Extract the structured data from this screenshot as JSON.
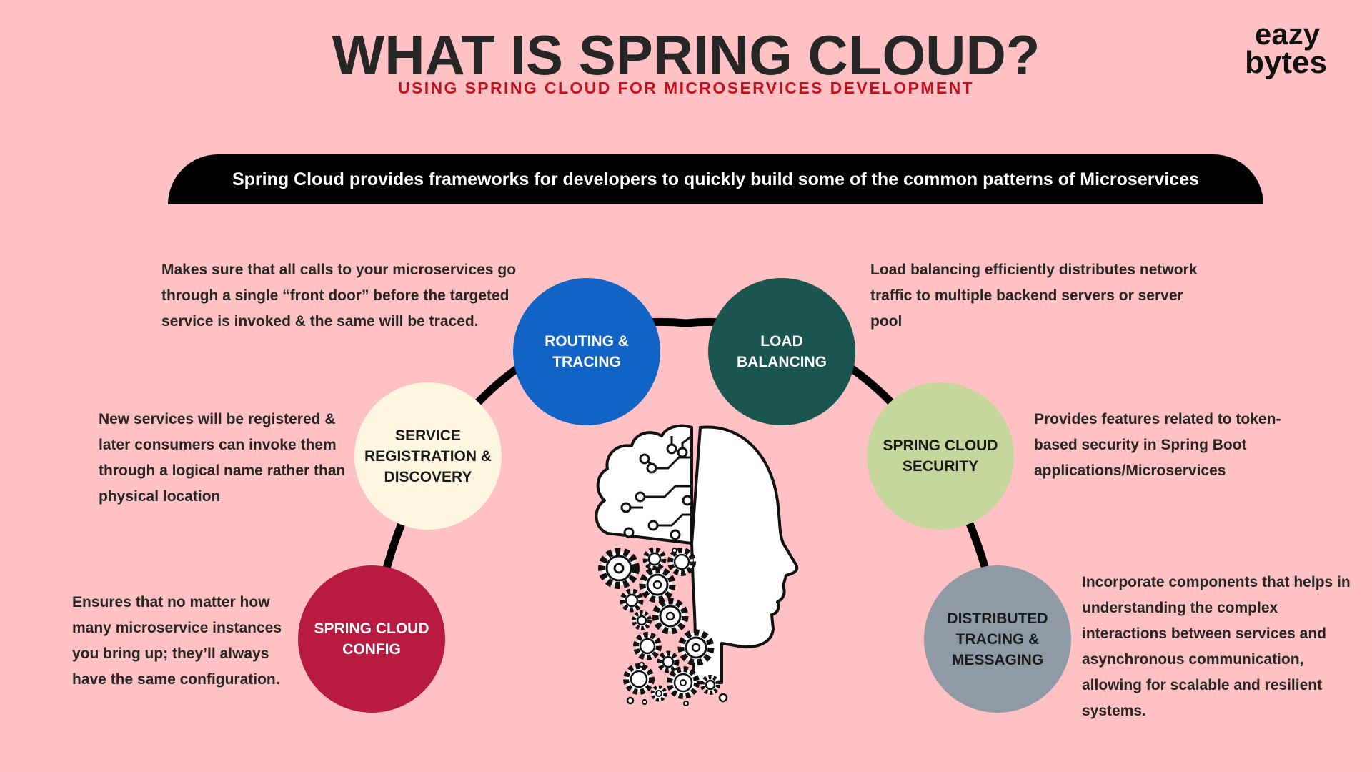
{
  "header": {
    "title": "WHAT IS SPRING CLOUD?",
    "subtitle": "USING SPRING CLOUD FOR MICROSERVICES DEVELOPMENT",
    "subtitle_color": "#c0111f"
  },
  "logo": {
    "line1": "eazy",
    "line2": "bytes"
  },
  "banner": {
    "text": "Spring Cloud provides frameworks for developers to quickly build some of the common patterns of Microservices",
    "color": "#000000"
  },
  "patterns": [
    {
      "id": "config",
      "label": "SPRING CLOUD CONFIG",
      "color": "#b81a41",
      "text_color": "#ffffff",
      "description": "Ensures that no matter how many microservice instances you bring up; they’ll always have the same configuration."
    },
    {
      "id": "discovery",
      "label": "SERVICE REGISTRATION & DISCOVERY",
      "color": "#fff6e1",
      "text_color": "#1a1a1a",
      "description": "New services will be registered & later consumers can invoke them through a logical name rather than physical location"
    },
    {
      "id": "routing",
      "label": "ROUTING & TRACING",
      "color": "#1163c5",
      "text_color": "#ffffff",
      "description": "Makes sure that all calls to your microservices go through a single “front door” before the targeted service is invoked & the same will be traced."
    },
    {
      "id": "load-balancing",
      "label": "LOAD BALANCING",
      "color": "#1a564f",
      "text_color": "#ffffff",
      "description": "Load balancing efficiently distributes network traffic to multiple backend servers or server pool"
    },
    {
      "id": "security",
      "label": "SPRING CLOUD SECURITY",
      "color": "#c6d79d",
      "text_color": "#1a1a1a",
      "description": "Provides features related to token-based security in Spring Boot applications/Microservices"
    },
    {
      "id": "tracing-messaging",
      "label": "DISTRIBUTED TRACING & MESSAGING",
      "color": "#8f9aa4",
      "text_color": "#1a1a1a",
      "description": "Incorporate components that helps in understanding the complex interactions between services and asynchronous communication, allowing for scalable and resilient systems."
    }
  ],
  "center_illustration": {
    "icon": "ai-head-gears-icon"
  }
}
